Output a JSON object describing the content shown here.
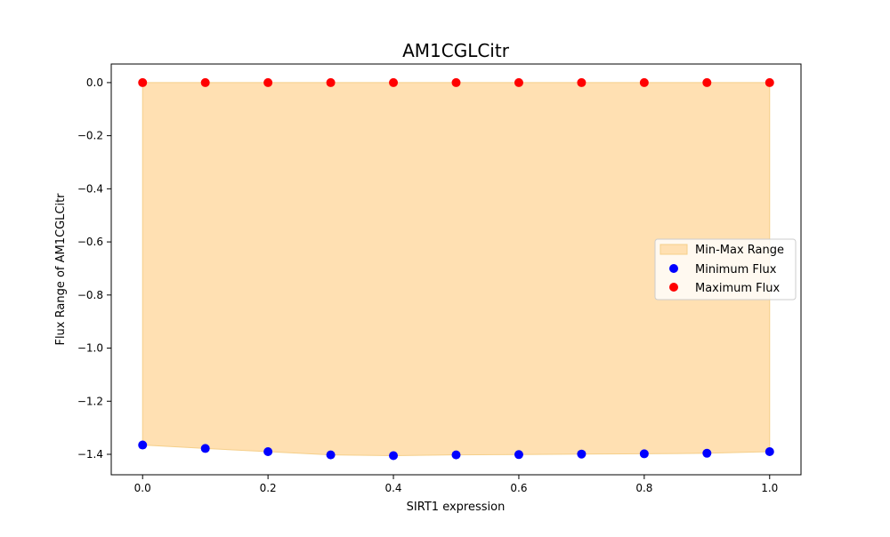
{
  "chart_data": {
    "type": "scatter",
    "title": "AM1CGLCitr",
    "xlabel": "SIRT1 expression",
    "ylabel": "Flux Range of AM1CGLCitr",
    "xlim": [
      -0.05,
      1.05
    ],
    "ylim": [
      -1.477,
      0.07
    ],
    "x": [
      0.0,
      0.1,
      0.2,
      0.3,
      0.4,
      0.5,
      0.6,
      0.7,
      0.8,
      0.9,
      1.0
    ],
    "x_ticks": [
      0.0,
      0.2,
      0.4,
      0.6,
      0.8,
      1.0
    ],
    "x_tick_labels": [
      "0.0",
      "0.2",
      "0.4",
      "0.6",
      "0.8",
      "1.0"
    ],
    "y_ticks": [
      0.0,
      -0.2,
      -0.4,
      -0.6,
      -0.8,
      -1.0,
      -1.2,
      -1.4
    ],
    "y_tick_labels": [
      "0.0",
      "−0.2",
      "−0.4",
      "−0.6",
      "−0.8",
      "−1.0",
      "−1.2",
      "−1.4"
    ],
    "grid": false,
    "legend_position": "center-right",
    "fill": {
      "name": "Min-Max Range",
      "color": "#ffe0b2",
      "edge_color": "#f5cf8a"
    },
    "series": [
      {
        "name": "Minimum Flux",
        "color": "#0000ff",
        "values": [
          -1.365,
          -1.378,
          -1.39,
          -1.402,
          -1.405,
          -1.402,
          -1.401,
          -1.399,
          -1.398,
          -1.396,
          -1.39
        ]
      },
      {
        "name": "Maximum Flux",
        "color": "#ff0000",
        "values": [
          0.0,
          0.0,
          0.0,
          0.0,
          0.0,
          0.0,
          0.0,
          0.0,
          0.0,
          0.0,
          0.0
        ]
      }
    ]
  }
}
